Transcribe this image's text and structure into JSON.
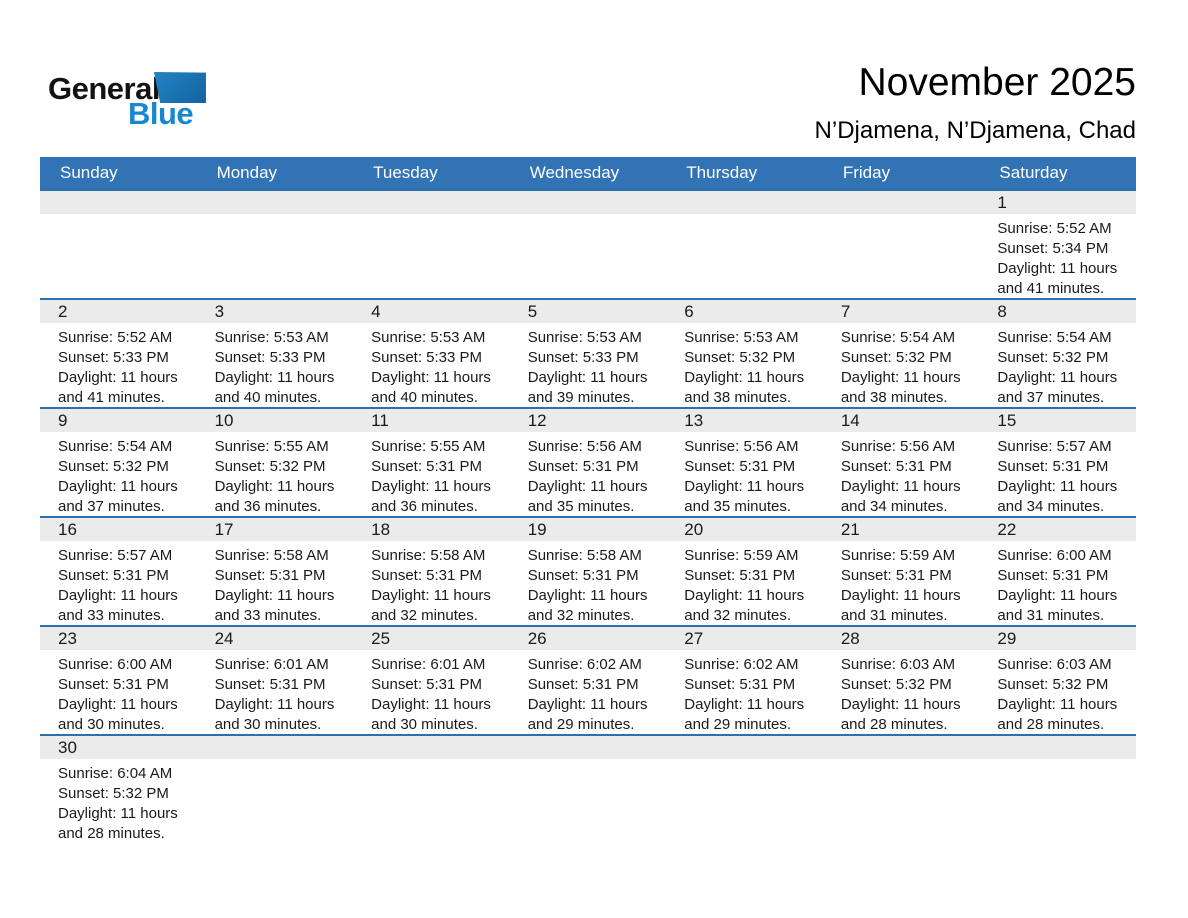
{
  "logo": {
    "line1": "General",
    "line2": "Blue"
  },
  "title": "November 2025",
  "subtitle": "N’Djamena, N’Djamena, Chad",
  "weekdays": [
    "Sunday",
    "Monday",
    "Tuesday",
    "Wednesday",
    "Thursday",
    "Friday",
    "Saturday"
  ],
  "colors": {
    "header_bg": "#3273b5",
    "row_separator": "#2c70ad",
    "day_band_bg": "#ebebeb",
    "logo_blue": "#1788cf",
    "logo_triangle": "#1d6fb0"
  },
  "weeks": [
    [
      null,
      null,
      null,
      null,
      null,
      null,
      {
        "day": "1",
        "sunrise": "Sunrise: 5:52 AM",
        "sunset": "Sunset: 5:34 PM",
        "daylight": "Daylight: 11 hours",
        "daylight2": "and 41 minutes."
      }
    ],
    [
      {
        "day": "2",
        "sunrise": "Sunrise: 5:52 AM",
        "sunset": "Sunset: 5:33 PM",
        "daylight": "Daylight: 11 hours",
        "daylight2": "and 41 minutes."
      },
      {
        "day": "3",
        "sunrise": "Sunrise: 5:53 AM",
        "sunset": "Sunset: 5:33 PM",
        "daylight": "Daylight: 11 hours",
        "daylight2": "and 40 minutes."
      },
      {
        "day": "4",
        "sunrise": "Sunrise: 5:53 AM",
        "sunset": "Sunset: 5:33 PM",
        "daylight": "Daylight: 11 hours",
        "daylight2": "and 40 minutes."
      },
      {
        "day": "5",
        "sunrise": "Sunrise: 5:53 AM",
        "sunset": "Sunset: 5:33 PM",
        "daylight": "Daylight: 11 hours",
        "daylight2": "and 39 minutes."
      },
      {
        "day": "6",
        "sunrise": "Sunrise: 5:53 AM",
        "sunset": "Sunset: 5:32 PM",
        "daylight": "Daylight: 11 hours",
        "daylight2": "and 38 minutes."
      },
      {
        "day": "7",
        "sunrise": "Sunrise: 5:54 AM",
        "sunset": "Sunset: 5:32 PM",
        "daylight": "Daylight: 11 hours",
        "daylight2": "and 38 minutes."
      },
      {
        "day": "8",
        "sunrise": "Sunrise: 5:54 AM",
        "sunset": "Sunset: 5:32 PM",
        "daylight": "Daylight: 11 hours",
        "daylight2": "and 37 minutes."
      }
    ],
    [
      {
        "day": "9",
        "sunrise": "Sunrise: 5:54 AM",
        "sunset": "Sunset: 5:32 PM",
        "daylight": "Daylight: 11 hours",
        "daylight2": "and 37 minutes."
      },
      {
        "day": "10",
        "sunrise": "Sunrise: 5:55 AM",
        "sunset": "Sunset: 5:32 PM",
        "daylight": "Daylight: 11 hours",
        "daylight2": "and 36 minutes."
      },
      {
        "day": "11",
        "sunrise": "Sunrise: 5:55 AM",
        "sunset": "Sunset: 5:31 PM",
        "daylight": "Daylight: 11 hours",
        "daylight2": "and 36 minutes."
      },
      {
        "day": "12",
        "sunrise": "Sunrise: 5:56 AM",
        "sunset": "Sunset: 5:31 PM",
        "daylight": "Daylight: 11 hours",
        "daylight2": "and 35 minutes."
      },
      {
        "day": "13",
        "sunrise": "Sunrise: 5:56 AM",
        "sunset": "Sunset: 5:31 PM",
        "daylight": "Daylight: 11 hours",
        "daylight2": "and 35 minutes."
      },
      {
        "day": "14",
        "sunrise": "Sunrise: 5:56 AM",
        "sunset": "Sunset: 5:31 PM",
        "daylight": "Daylight: 11 hours",
        "daylight2": "and 34 minutes."
      },
      {
        "day": "15",
        "sunrise": "Sunrise: 5:57 AM",
        "sunset": "Sunset: 5:31 PM",
        "daylight": "Daylight: 11 hours",
        "daylight2": "and 34 minutes."
      }
    ],
    [
      {
        "day": "16",
        "sunrise": "Sunrise: 5:57 AM",
        "sunset": "Sunset: 5:31 PM",
        "daylight": "Daylight: 11 hours",
        "daylight2": "and 33 minutes."
      },
      {
        "day": "17",
        "sunrise": "Sunrise: 5:58 AM",
        "sunset": "Sunset: 5:31 PM",
        "daylight": "Daylight: 11 hours",
        "daylight2": "and 33 minutes."
      },
      {
        "day": "18",
        "sunrise": "Sunrise: 5:58 AM",
        "sunset": "Sunset: 5:31 PM",
        "daylight": "Daylight: 11 hours",
        "daylight2": "and 32 minutes."
      },
      {
        "day": "19",
        "sunrise": "Sunrise: 5:58 AM",
        "sunset": "Sunset: 5:31 PM",
        "daylight": "Daylight: 11 hours",
        "daylight2": "and 32 minutes."
      },
      {
        "day": "20",
        "sunrise": "Sunrise: 5:59 AM",
        "sunset": "Sunset: 5:31 PM",
        "daylight": "Daylight: 11 hours",
        "daylight2": "and 32 minutes."
      },
      {
        "day": "21",
        "sunrise": "Sunrise: 5:59 AM",
        "sunset": "Sunset: 5:31 PM",
        "daylight": "Daylight: 11 hours",
        "daylight2": "and 31 minutes."
      },
      {
        "day": "22",
        "sunrise": "Sunrise: 6:00 AM",
        "sunset": "Sunset: 5:31 PM",
        "daylight": "Daylight: 11 hours",
        "daylight2": "and 31 minutes."
      }
    ],
    [
      {
        "day": "23",
        "sunrise": "Sunrise: 6:00 AM",
        "sunset": "Sunset: 5:31 PM",
        "daylight": "Daylight: 11 hours",
        "daylight2": "and 30 minutes."
      },
      {
        "day": "24",
        "sunrise": "Sunrise: 6:01 AM",
        "sunset": "Sunset: 5:31 PM",
        "daylight": "Daylight: 11 hours",
        "daylight2": "and 30 minutes."
      },
      {
        "day": "25",
        "sunrise": "Sunrise: 6:01 AM",
        "sunset": "Sunset: 5:31 PM",
        "daylight": "Daylight: 11 hours",
        "daylight2": "and 30 minutes."
      },
      {
        "day": "26",
        "sunrise": "Sunrise: 6:02 AM",
        "sunset": "Sunset: 5:31 PM",
        "daylight": "Daylight: 11 hours",
        "daylight2": "and 29 minutes."
      },
      {
        "day": "27",
        "sunrise": "Sunrise: 6:02 AM",
        "sunset": "Sunset: 5:31 PM",
        "daylight": "Daylight: 11 hours",
        "daylight2": "and 29 minutes."
      },
      {
        "day": "28",
        "sunrise": "Sunrise: 6:03 AM",
        "sunset": "Sunset: 5:32 PM",
        "daylight": "Daylight: 11 hours",
        "daylight2": "and 28 minutes."
      },
      {
        "day": "29",
        "sunrise": "Sunrise: 6:03 AM",
        "sunset": "Sunset: 5:32 PM",
        "daylight": "Daylight: 11 hours",
        "daylight2": "and 28 minutes."
      }
    ],
    [
      {
        "day": "30",
        "sunrise": "Sunrise: 6:04 AM",
        "sunset": "Sunset: 5:32 PM",
        "daylight": "Daylight: 11 hours",
        "daylight2": "and 28 minutes."
      },
      null,
      null,
      null,
      null,
      null,
      null
    ]
  ]
}
